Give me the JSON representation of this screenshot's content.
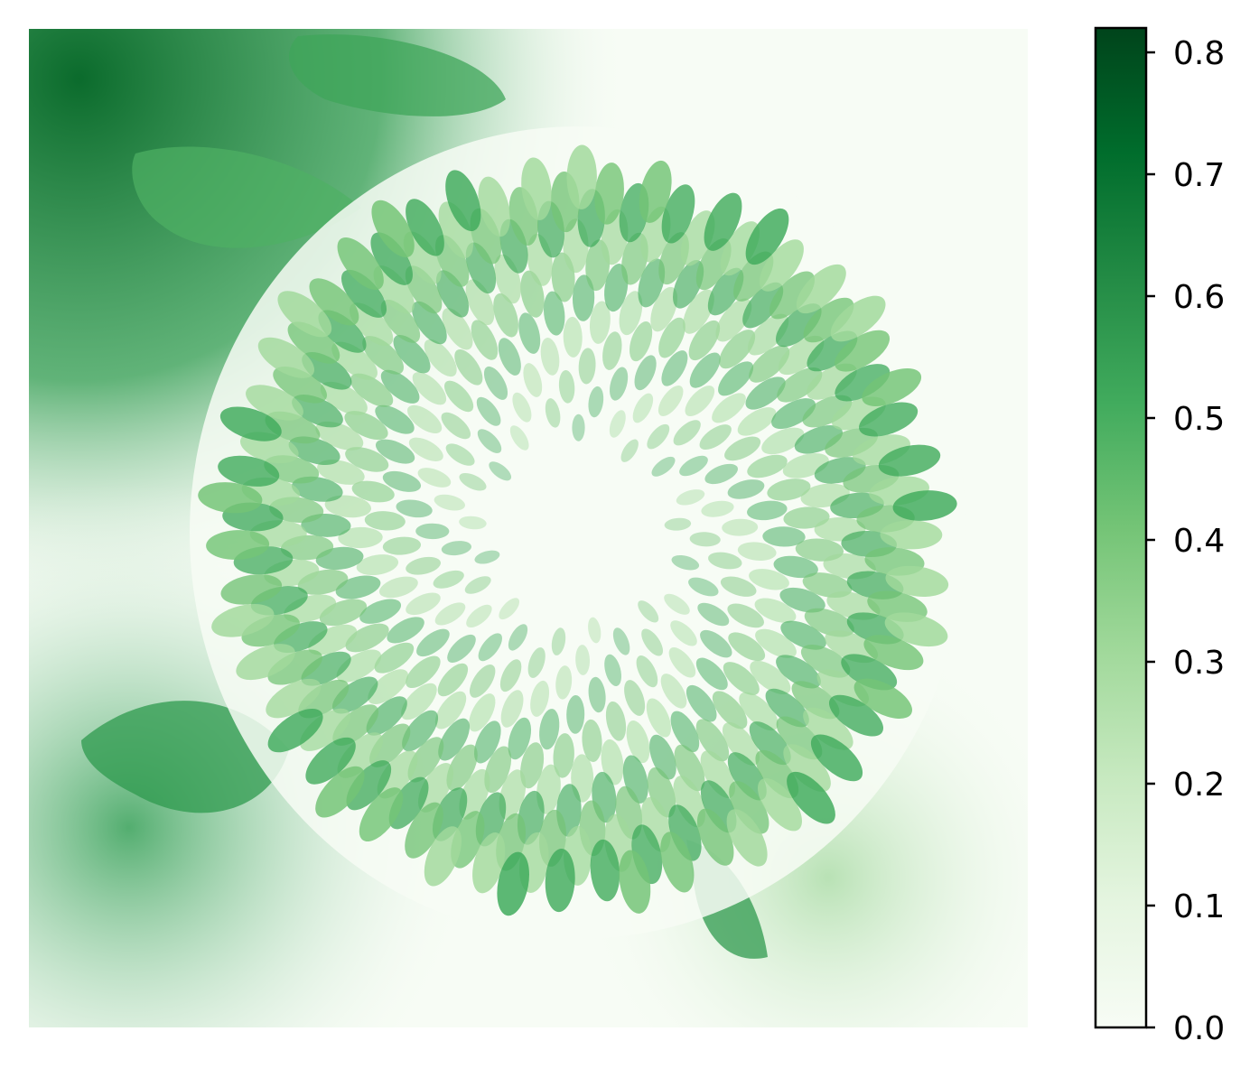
{
  "chart_data": {
    "type": "heatmap",
    "title": "",
    "xlabel": "",
    "ylabel": "",
    "axes_visible": false,
    "subject": "sunflower image rendered through a sequential colormap",
    "colormap": "Greens",
    "colormap_stops": [
      "#f7fcf5",
      "#e5f5e0",
      "#c7e9c0",
      "#a1d99b",
      "#74c476",
      "#41ab5d",
      "#238b45",
      "#006d2c",
      "#00441b"
    ],
    "colorbar": {
      "placement": "right",
      "range": [
        0.0,
        0.82
      ],
      "ticks": [
        0.0,
        0.1,
        0.2,
        0.3,
        0.4,
        0.5,
        0.6,
        0.7,
        0.8
      ],
      "tick_labels": [
        "0.0",
        "0.1",
        "0.2",
        "0.3",
        "0.4",
        "0.5",
        "0.6",
        "0.7",
        "0.8"
      ]
    }
  }
}
